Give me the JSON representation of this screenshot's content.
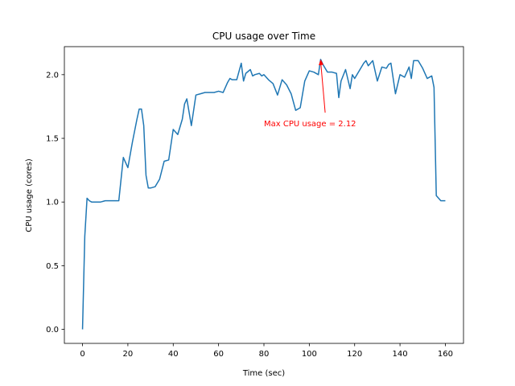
{
  "chart_data": {
    "type": "line",
    "title": "CPU usage over Time",
    "xlabel": "Time (sec)",
    "ylabel": "CPU usage (cores)",
    "xlim": [
      -8,
      168
    ],
    "ylim": [
      -0.11,
      2.22
    ],
    "xticks": [
      0,
      20,
      40,
      60,
      80,
      100,
      120,
      140,
      160
    ],
    "yticks": [
      0.0,
      0.5,
      1.0,
      1.5,
      2.0
    ],
    "xtick_labels": [
      "0",
      "20",
      "40",
      "60",
      "80",
      "100",
      "120",
      "140",
      "160"
    ],
    "ytick_labels": [
      "0.0",
      "0.5",
      "1.0",
      "1.5",
      "2.0"
    ],
    "grid": false,
    "series": [
      {
        "color": "#1f77b4",
        "x": [
          0,
          1,
          2,
          3,
          4,
          6,
          8,
          10,
          12,
          14,
          15,
          16,
          18,
          20,
          22,
          24,
          25,
          26,
          27,
          28,
          29,
          30,
          32,
          34,
          36,
          38,
          40,
          42,
          44,
          45,
          46,
          48,
          50,
          52,
          54,
          56,
          58,
          60,
          62,
          64,
          65,
          66,
          68,
          70,
          71,
          72,
          74,
          75,
          76,
          78,
          79,
          80,
          82,
          84,
          86,
          88,
          90,
          92,
          94,
          96,
          98,
          100,
          102,
          104,
          105,
          106,
          108,
          110,
          112,
          113,
          114,
          116,
          118,
          119,
          120,
          122,
          124,
          125,
          126,
          128,
          130,
          132,
          134,
          135,
          136,
          138,
          140,
          142,
          144,
          145,
          146,
          148,
          150,
          152,
          154,
          155,
          156,
          158,
          160
        ],
        "y": [
          0.0,
          0.73,
          1.03,
          1.01,
          1.0,
          1.0,
          1.0,
          1.01,
          1.01,
          1.01,
          1.01,
          1.01,
          1.35,
          1.27,
          1.47,
          1.65,
          1.73,
          1.73,
          1.6,
          1.21,
          1.11,
          1.11,
          1.12,
          1.18,
          1.32,
          1.33,
          1.57,
          1.53,
          1.65,
          1.77,
          1.81,
          1.6,
          1.84,
          1.85,
          1.86,
          1.86,
          1.86,
          1.87,
          1.86,
          1.94,
          1.97,
          1.96,
          1.96,
          2.09,
          1.95,
          2.01,
          2.04,
          1.99,
          2.0,
          2.01,
          1.99,
          2.0,
          1.96,
          1.93,
          1.84,
          1.96,
          1.92,
          1.85,
          1.72,
          1.74,
          1.95,
          2.03,
          2.02,
          2.0,
          2.12,
          2.08,
          2.02,
          2.02,
          2.01,
          1.82,
          1.95,
          2.04,
          1.89,
          2.0,
          1.97,
          2.03,
          2.09,
          2.11,
          2.07,
          2.11,
          1.95,
          2.06,
          2.05,
          2.08,
          2.09,
          1.85,
          2.0,
          1.98,
          2.06,
          1.97,
          2.11,
          2.11,
          2.05,
          1.97,
          1.99,
          1.9,
          1.05,
          1.01,
          1.01
        ]
      }
    ],
    "annotations": [
      {
        "text": "Max CPU usage = 2.12",
        "color": "#ff0000",
        "xy": [
          105,
          2.12
        ],
        "xytext": [
          80,
          1.62
        ]
      }
    ]
  }
}
